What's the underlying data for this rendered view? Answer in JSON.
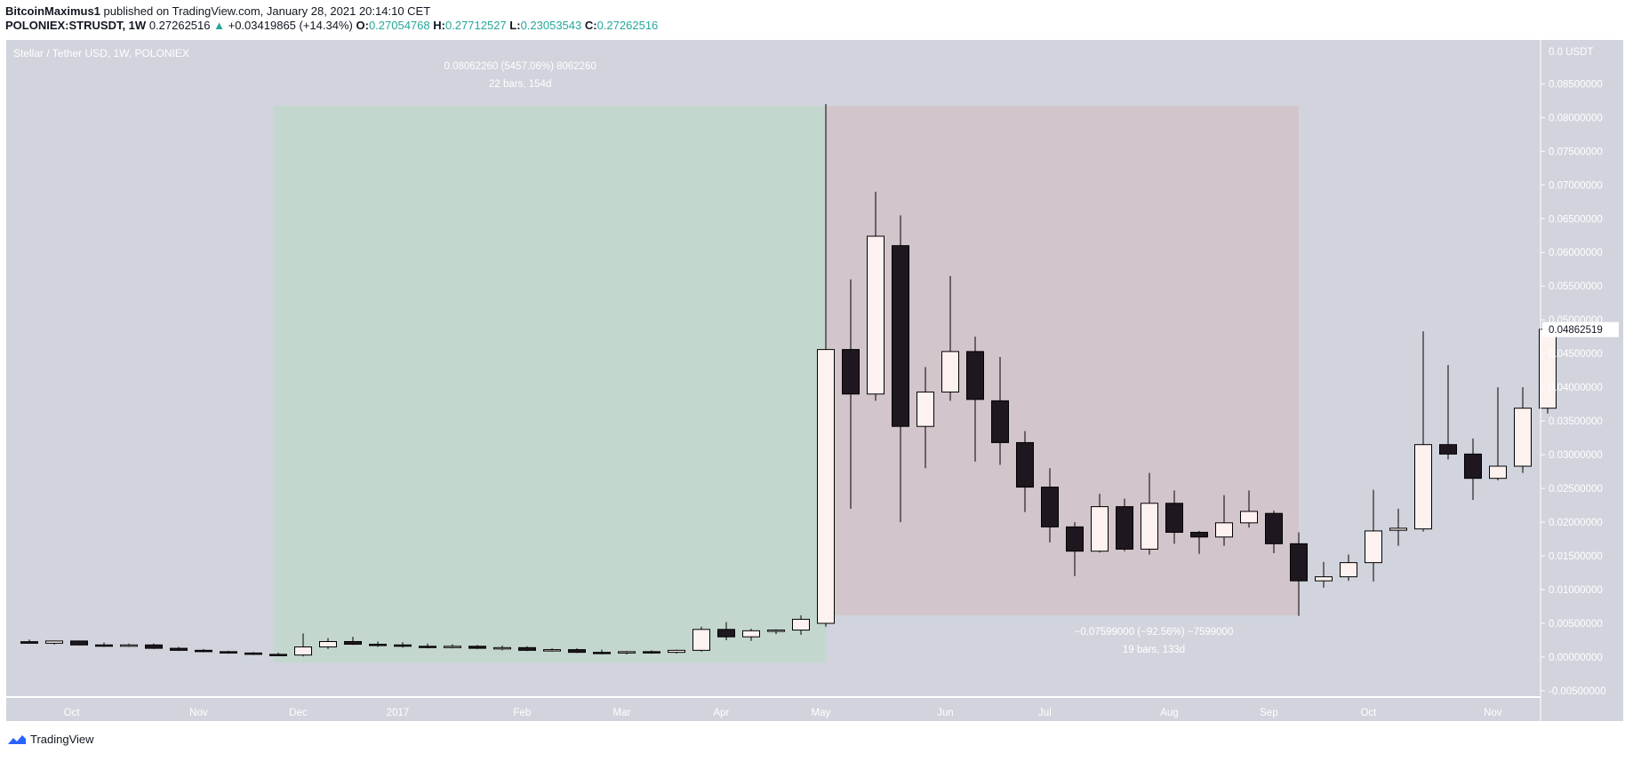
{
  "header": {
    "author": "BitcoinMaximus1",
    "published_text": "published on TradingView.com, January 28, 2021 20:14:10 CET",
    "symbol": "POLONIEX:STRUSDT, 1W",
    "last": "0.27262516",
    "change_arrow": "▲",
    "change": "+0.03419865 (+14.34%)",
    "o_label": "O:",
    "o_value": "0.27054768",
    "h_label": "H:",
    "h_value": "0.27712527",
    "l_label": "L:",
    "l_value": "0.23053543",
    "c_label": "C:",
    "c_value": "0.27262516"
  },
  "footer": {
    "brand": "TradingView",
    "logo_icon": "tradingview-logo-icon"
  },
  "colors": {
    "chart_bg": "#d1d4dc",
    "up_fill": "#fdf2ef",
    "down_fill": "#1e1720",
    "wick": "#000000",
    "green_zone": "#c4d7cf",
    "red_zone": "#d3c5cc",
    "label_text": "#ffffff",
    "axis_text": "#ffffff"
  },
  "chart_data": {
    "type": "candlestick",
    "title": "Stellar / Tether USD, 1W, POLONIEX",
    "currency": "USDT",
    "ylim": [
      -0.0058,
      0.0915
    ],
    "y_ticks": [
      "0.08500000",
      "0.08000000",
      "0.07500000",
      "0.07000000",
      "0.06500000",
      "0.06000000",
      "0.05500000",
      "0.05000000",
      "0.04500000",
      "0.04000000",
      "0.03500000",
      "0.03000000",
      "0.02500000",
      "0.02000000",
      "0.01500000",
      "0.01000000",
      "0.00500000",
      "0.00000000",
      "-0.00500000"
    ],
    "y_tick_values": [
      0.085,
      0.08,
      0.075,
      0.07,
      0.065,
      0.06,
      0.055,
      0.05,
      0.045,
      0.04,
      0.035,
      0.03,
      0.025,
      0.02,
      0.015,
      0.01,
      0.005,
      0.0,
      -0.005
    ],
    "y_top_label": "0.0 USDT",
    "last_price_label": "0.04862519",
    "last_price_value": 0.04862519,
    "x_labels": [
      {
        "label": "Oct",
        "index": 1.7
      },
      {
        "label": "Nov",
        "index": 6.8
      },
      {
        "label": "Dec",
        "index": 10.8
      },
      {
        "label": "2017",
        "index": 14.8
      },
      {
        "label": "Feb",
        "index": 19.8
      },
      {
        "label": "Mar",
        "index": 23.8
      },
      {
        "label": "Apr",
        "index": 27.8
      },
      {
        "label": "May",
        "index": 31.8
      },
      {
        "label": "Jun",
        "index": 36.8
      },
      {
        "label": "Jul",
        "index": 40.8
      },
      {
        "label": "Aug",
        "index": 45.8
      },
      {
        "label": "Sep",
        "index": 49.8
      },
      {
        "label": "Oct",
        "index": 53.8
      },
      {
        "label": "Nov",
        "index": 58.8
      }
    ],
    "candles": [
      [
        0.00228,
        0.0026,
        0.002,
        0.00205
      ],
      [
        0.00205,
        0.00245,
        0.00185,
        0.00238
      ],
      [
        0.00238,
        0.00245,
        0.00175,
        0.0018
      ],
      [
        0.0018,
        0.00215,
        0.0015,
        0.0017
      ],
      [
        0.0017,
        0.002,
        0.0015,
        0.0018
      ],
      [
        0.0018,
        0.002,
        0.0012,
        0.0013
      ],
      [
        0.0013,
        0.0015,
        0.0009,
        0.001
      ],
      [
        0.001,
        0.0012,
        0.0007,
        0.0008
      ],
      [
        0.0008,
        0.00095,
        0.0005,
        0.0006
      ],
      [
        0.0006,
        0.00075,
        0.0003,
        0.0004
      ],
      [
        0.0004,
        0.00065,
        0.0002,
        0.0003
      ],
      [
        0.0003,
        0.0035,
        0.0001,
        0.0015
      ],
      [
        0.0015,
        0.0028,
        0.0012,
        0.0023
      ],
      [
        0.0023,
        0.003,
        0.0018,
        0.0019
      ],
      [
        0.0019,
        0.0023,
        0.0015,
        0.0018
      ],
      [
        0.0018,
        0.0022,
        0.0014,
        0.0016
      ],
      [
        0.0016,
        0.002,
        0.0013,
        0.0015
      ],
      [
        0.0015,
        0.0019,
        0.0013,
        0.0016
      ],
      [
        0.0016,
        0.0018,
        0.0012,
        0.0013
      ],
      [
        0.0013,
        0.0017,
        0.001,
        0.0014
      ],
      [
        0.0014,
        0.0016,
        0.0009,
        0.001
      ],
      [
        0.001,
        0.0013,
        0.0008,
        0.0011
      ],
      [
        0.0011,
        0.0013,
        0.0006,
        0.0007
      ],
      [
        0.0007,
        0.0011,
        0.0004,
        0.0006
      ],
      [
        0.0006,
        0.0009,
        0.0004,
        0.0008
      ],
      [
        0.0008,
        0.001,
        0.0005,
        0.0007
      ],
      [
        0.0007,
        0.0011,
        0.0005,
        0.001
      ],
      [
        0.001,
        0.0045,
        0.0008,
        0.0041
      ],
      [
        0.0041,
        0.0052,
        0.0025,
        0.003
      ],
      [
        0.003,
        0.0042,
        0.0024,
        0.0039
      ],
      [
        0.0039,
        0.0041,
        0.0034,
        0.004
      ],
      [
        0.004,
        0.0062,
        0.0033,
        0.0056
      ],
      [
        0.005,
        0.082,
        0.0045,
        0.0456
      ],
      [
        0.0456,
        0.056,
        0.022,
        0.039
      ],
      [
        0.039,
        0.069,
        0.038,
        0.0624
      ],
      [
        0.061,
        0.0655,
        0.02,
        0.0342
      ],
      [
        0.0342,
        0.043,
        0.028,
        0.0393
      ],
      [
        0.0393,
        0.0565,
        0.038,
        0.0453
      ],
      [
        0.0453,
        0.0475,
        0.029,
        0.0382
      ],
      [
        0.038,
        0.0445,
        0.0285,
        0.0318
      ],
      [
        0.0318,
        0.0335,
        0.0215,
        0.0252
      ],
      [
        0.0252,
        0.028,
        0.017,
        0.0193
      ],
      [
        0.0193,
        0.02,
        0.012,
        0.0157
      ],
      [
        0.0157,
        0.0242,
        0.0155,
        0.0223
      ],
      [
        0.0223,
        0.0235,
        0.0157,
        0.016
      ],
      [
        0.016,
        0.0273,
        0.0152,
        0.0228
      ],
      [
        0.0228,
        0.0247,
        0.0168,
        0.0185
      ],
      [
        0.0185,
        0.0187,
        0.0153,
        0.0178
      ],
      [
        0.0178,
        0.024,
        0.0165,
        0.0199
      ],
      [
        0.0199,
        0.0247,
        0.0192,
        0.0216
      ],
      [
        0.0213,
        0.0217,
        0.0154,
        0.0168
      ],
      [
        0.0168,
        0.0185,
        0.0061,
        0.0113
      ],
      [
        0.0113,
        0.0141,
        0.0103,
        0.0119
      ],
      [
        0.0119,
        0.0152,
        0.0113,
        0.014
      ],
      [
        0.014,
        0.0248,
        0.0112,
        0.0187
      ],
      [
        0.0188,
        0.022,
        0.0165,
        0.0191
      ],
      [
        0.019,
        0.0483,
        0.0186,
        0.0315
      ],
      [
        0.0315,
        0.0433,
        0.0293,
        0.0301
      ],
      [
        0.0301,
        0.0324,
        0.0233,
        0.0265
      ],
      [
        0.0265,
        0.04,
        0.0262,
        0.0283
      ],
      [
        0.0283,
        0.04,
        0.0273,
        0.0369
      ],
      [
        0.0369,
        0.0492,
        0.0361,
        0.0486
      ]
    ],
    "range_up": {
      "label_line1": "0.08062260 (5457.06%) 8062260",
      "label_line2": "22 bars, 154d",
      "start_index": 9.8,
      "end_index": 32,
      "low": -0.0008,
      "high": 0.0817
    },
    "range_down": {
      "label_line1": "−0.07599000 (−92.56%) −7599000",
      "label_line2": "19 bars, 133d",
      "start_index": 32,
      "end_index": 51,
      "low": 0.0062,
      "high": 0.0817
    }
  }
}
